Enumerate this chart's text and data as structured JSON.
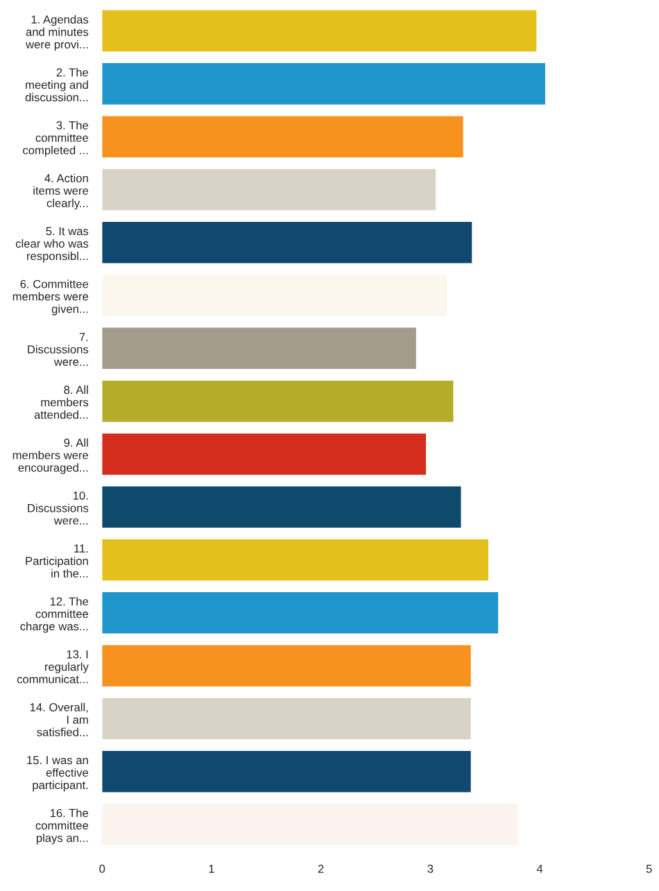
{
  "chart_data": {
    "type": "bar",
    "orientation": "horizontal",
    "categories": [
      "1. Agendas\nand minutes\nwere provi...",
      "2. The\nmeeting and\ndiscussion...",
      "3. The\ncommittee\ncompleted ...",
      "4. Action\nitems were\nclearly...",
      "5. It was\nclear who was\nresponsibl...",
      "6. Committee\nmembers were\ngiven...",
      "7.\nDiscussions\nwere...",
      "8. All\nmembers\nattended...",
      "9. All\nmembers were\nencouraged...",
      "10.\nDiscussions\nwere...",
      "11.\nParticipation\nin the...",
      "12. The\ncommittee\ncharge was...",
      "13. I\nregularly\ncommunicat...",
      "14. Overall,\nI am\nsatisfied...",
      "15. I was an\neffective\nparticipant.",
      "16. The\ncommittee\nplays an..."
    ],
    "values": [
      3.97,
      4.05,
      3.3,
      3.05,
      3.38,
      3.15,
      2.87,
      3.21,
      2.96,
      3.28,
      3.53,
      3.62,
      3.37,
      3.37,
      3.37,
      3.8
    ],
    "colors": [
      "#e3c01c",
      "#1e96cc",
      "#f7921e",
      "#d9d3c7",
      "#114870",
      "#fbf7ee",
      "#a39b8c",
      "#b4ad2a",
      "#d42d1e",
      "#0d4a6b",
      "#e3c01c",
      "#1e96cc",
      "#f7921e",
      "#d9d3c7",
      "#114870",
      "#fcf3ef"
    ],
    "xlim": [
      0,
      5
    ],
    "xticks": [
      0,
      1,
      2,
      3,
      4,
      5
    ],
    "grid": false,
    "legend": false
  }
}
